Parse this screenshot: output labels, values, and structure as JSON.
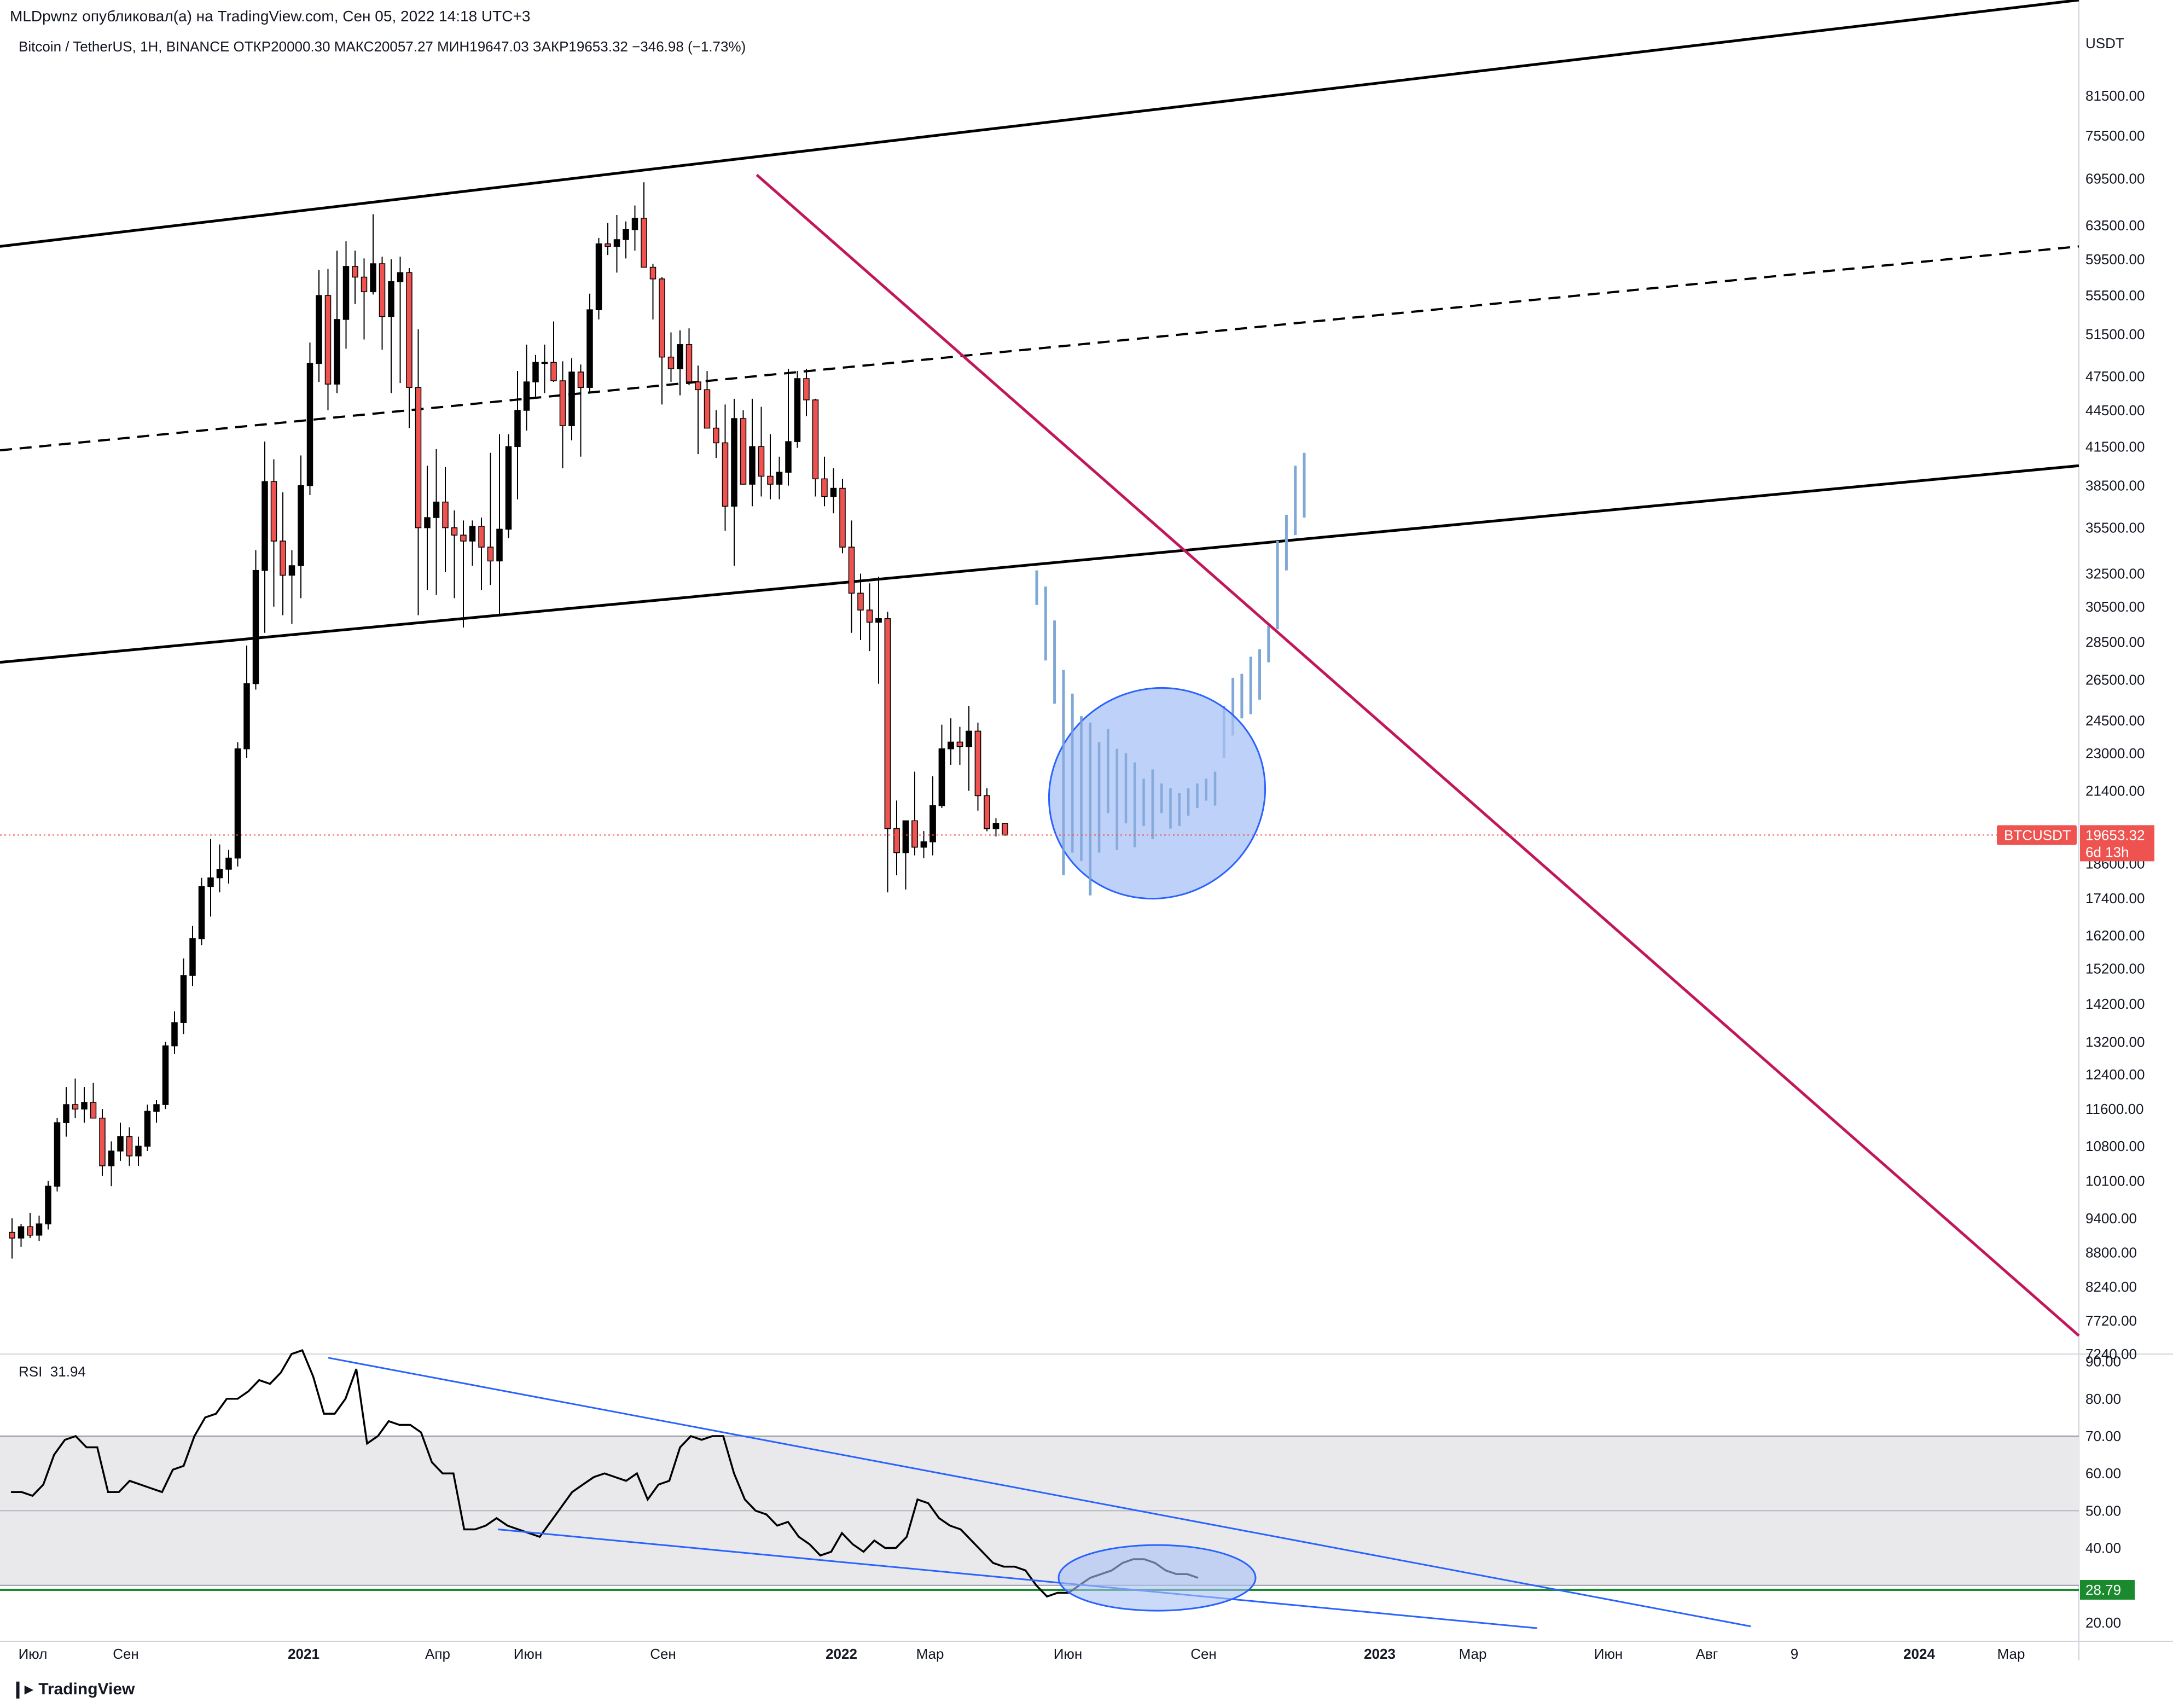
{
  "header": {
    "published": "MLDpwnz опубликовал(а) на TradingView.com, Сен 05, 2022 14:18 UTC+3",
    "symbol_line": "Bitcoin / TetherUS, 1H, BINANCE  ОТКР20000.30  МАКС20057.27  МИН19647.03  ЗАКР19653.32  −346.98 (−1.73%)"
  },
  "footer": {
    "logo": "TradingView"
  },
  "colors": {
    "up": "#000000",
    "down": "#ef5350",
    "trend_red": "#c2185b",
    "channel": "#000000",
    "projection": "#7fa8d6",
    "ellipse_fill": "#a8c2f5",
    "ellipse_stroke": "#2962ff",
    "rsi_trend": "#2962ff",
    "rsi_band": "#e9e9ec",
    "rsi_oversold": "#1b8a2f",
    "price_tag": "#ef5350"
  },
  "chart_data": [
    {
      "type": "candlestick",
      "symbol": "BTCUSDT",
      "price_axis_unit": "USDT",
      "scale": "log",
      "ylim": [
        7240,
        98000
      ],
      "y_ticks": [
        81500,
        75500,
        69500,
        63500,
        59500,
        55500,
        51500,
        47500,
        44500,
        41500,
        38500,
        35500,
        32500,
        30500,
        28500,
        26500,
        24500,
        23000,
        21400,
        18600,
        17400,
        16200,
        15200,
        14200,
        13200,
        12400,
        11600,
        10800,
        10100,
        9400,
        8800,
        8240,
        7720,
        7240
      ],
      "y_tick_labels": [
        "81500.00",
        "75500.00",
        "69500.00",
        "63500.00",
        "59500.00",
        "55500.00",
        "51500.00",
        "47500.00",
        "44500.00",
        "41500.00",
        "38500.00",
        "35500.00",
        "32500.00",
        "30500.00",
        "28500.00",
        "26500.00",
        "24500.00",
        "23000.00",
        "21400.00",
        "18600.00",
        "17400.00",
        "16200.00",
        "15200.00",
        "14200.00",
        "13200.00",
        "12400.00",
        "11600.00",
        "10800.00",
        "10100.00",
        "9400.00",
        "8800.00",
        "8240.00",
        "7720.00",
        "7240.00"
      ],
      "x_tick_labels": [
        "Июл",
        "Сен",
        "2021",
        "Апр",
        "Июн",
        "Сен",
        "2022",
        "Мар",
        "Июн",
        "Сен",
        "2023",
        "Мар",
        "Июн",
        "Авг",
        "9",
        "2024",
        "Мар"
      ],
      "x_tick_bold": [
        false,
        false,
        true,
        false,
        false,
        false,
        true,
        false,
        false,
        false,
        true,
        false,
        false,
        false,
        false,
        true,
        false
      ],
      "last_price": {
        "label": "BTCUSDT",
        "value": "19653.32",
        "countdown": "6d 13h",
        "price": 19653.32
      },
      "candles_ohlc": [
        [
          9150,
          9400,
          8700,
          9050
        ],
        [
          9050,
          9300,
          8900,
          9250
        ],
        [
          9250,
          9500,
          9050,
          9100
        ],
        [
          9100,
          9450,
          9000,
          9300
        ],
        [
          9300,
          10100,
          9200,
          10000
        ],
        [
          10000,
          11400,
          9900,
          11300
        ],
        [
          11300,
          12100,
          11000,
          11700
        ],
        [
          11700,
          12300,
          11400,
          11600
        ],
        [
          11600,
          12100,
          11300,
          11750
        ],
        [
          11750,
          12200,
          11500,
          11400
        ],
        [
          11400,
          11600,
          10200,
          10400
        ],
        [
          10400,
          10900,
          10000,
          10700
        ],
        [
          10700,
          11300,
          10500,
          11000
        ],
        [
          11000,
          11200,
          10400,
          10600
        ],
        [
          10600,
          11000,
          10400,
          10800
        ],
        [
          10800,
          11700,
          10700,
          11550
        ],
        [
          11550,
          11800,
          11300,
          11700
        ],
        [
          11700,
          13200,
          11600,
          13100
        ],
        [
          13100,
          14000,
          12900,
          13700
        ],
        [
          13700,
          15500,
          13400,
          15000
        ],
        [
          15000,
          16500,
          14700,
          16100
        ],
        [
          16100,
          18100,
          15900,
          17800
        ],
        [
          17800,
          19500,
          16800,
          18100
        ],
        [
          18100,
          19300,
          17600,
          18400
        ],
        [
          18400,
          19100,
          17900,
          18800
        ],
        [
          18800,
          23500,
          18500,
          23200
        ],
        [
          23200,
          28300,
          22800,
          26300
        ],
        [
          26300,
          34000,
          26000,
          32700
        ],
        [
          32700,
          41900,
          29000,
          38800
        ],
        [
          38800,
          40500,
          30500,
          34600
        ],
        [
          34600,
          38000,
          30000,
          32400
        ],
        [
          32400,
          34000,
          29500,
          33000
        ],
        [
          33000,
          40800,
          31000,
          38500
        ],
        [
          38500,
          50700,
          37800,
          48700
        ],
        [
          48700,
          58300,
          47000,
          55500
        ],
        [
          55500,
          58400,
          44500,
          46800
        ],
        [
          46800,
          60500,
          46000,
          53000
        ],
        [
          53000,
          61600,
          50100,
          58700
        ],
        [
          58700,
          60500,
          54600,
          57500
        ],
        [
          57500,
          59600,
          51000,
          55900
        ],
        [
          55900,
          64900,
          55600,
          59000
        ],
        [
          59000,
          59800,
          50000,
          53300
        ],
        [
          53300,
          59500,
          46000,
          57000
        ],
        [
          57000,
          59800,
          46900,
          58000
        ],
        [
          58000,
          58500,
          43000,
          46500
        ],
        [
          46500,
          52000,
          30000,
          35500
        ],
        [
          35500,
          40000,
          31500,
          36200
        ],
        [
          36200,
          41300,
          31200,
          37300
        ],
        [
          37300,
          39900,
          32600,
          35500
        ],
        [
          35500,
          36700,
          31000,
          35000
        ],
        [
          35000,
          36000,
          29300,
          34600
        ],
        [
          34600,
          36000,
          33000,
          35600
        ],
        [
          35600,
          36200,
          31500,
          34200
        ],
        [
          34200,
          41000,
          31800,
          33300
        ],
        [
          33300,
          42500,
          30000,
          35400
        ],
        [
          35400,
          42500,
          34800,
          41500
        ],
        [
          41500,
          48000,
          37500,
          44500
        ],
        [
          44500,
          50500,
          42800,
          47000
        ],
        [
          47000,
          49500,
          45500,
          48800
        ],
        [
          48800,
          50500,
          46000,
          48800
        ],
        [
          48800,
          52800,
          47000,
          47100
        ],
        [
          47100,
          48900,
          39800,
          43200
        ],
        [
          43200,
          49200,
          42000,
          47900
        ],
        [
          47900,
          48600,
          40700,
          46500
        ],
        [
          46500,
          55700,
          46000,
          54000
        ],
        [
          54000,
          62000,
          53000,
          61300
        ],
        [
          61300,
          63800,
          60000,
          61000
        ],
        [
          61000,
          64800,
          58000,
          61800
        ],
        [
          61800,
          64000,
          59600,
          63000
        ],
        [
          63000,
          66000,
          60500,
          64400
        ],
        [
          64400,
          69000,
          60000,
          58600
        ],
        [
          58600,
          59000,
          53000,
          57300
        ],
        [
          57300,
          57500,
          45000,
          49300
        ],
        [
          49300,
          51700,
          47000,
          48200
        ],
        [
          48200,
          51900,
          45800,
          50500
        ],
        [
          50500,
          52100,
          46700,
          47000
        ],
        [
          47000,
          48500,
          40900,
          46300
        ],
        [
          46300,
          48000,
          43200,
          43000
        ],
        [
          43000,
          44500,
          40600,
          41800
        ],
        [
          41800,
          45000,
          35300,
          37000
        ],
        [
          37000,
          45500,
          33000,
          43800
        ],
        [
          43800,
          44500,
          40000,
          38600
        ],
        [
          38600,
          45500,
          37000,
          41500
        ],
        [
          41500,
          44800,
          37700,
          39200
        ],
        [
          39200,
          42500,
          37500,
          38600
        ],
        [
          38600,
          40700,
          37500,
          39500
        ],
        [
          39500,
          48200,
          38500,
          41900
        ],
        [
          41900,
          48000,
          41400,
          47300
        ],
        [
          47300,
          48200,
          44000,
          45400
        ],
        [
          45400,
          45500,
          37700,
          39000
        ],
        [
          39000,
          40700,
          37000,
          37700
        ],
        [
          37700,
          39800,
          36500,
          38300
        ],
        [
          38300,
          39000,
          33800,
          34200
        ],
        [
          34200,
          36000,
          29000,
          31300
        ],
        [
          31300,
          32500,
          28600,
          30300
        ],
        [
          30300,
          31900,
          28000,
          29600
        ],
        [
          29600,
          32300,
          26300,
          29800
        ],
        [
          29800,
          30200,
          17600,
          19900
        ],
        [
          19900,
          21000,
          18200,
          19000
        ],
        [
          19000,
          20000,
          17700,
          20200
        ],
        [
          20200,
          22200,
          18900,
          19200
        ],
        [
          19200,
          19800,
          18800,
          19400
        ],
        [
          19400,
          22000,
          18900,
          20800
        ],
        [
          20800,
          24300,
          20700,
          23200
        ],
        [
          23200,
          24600,
          22500,
          23500
        ],
        [
          23500,
          24200,
          22500,
          23300
        ],
        [
          23300,
          25200,
          21400,
          24000
        ],
        [
          24000,
          24400,
          20600,
          21200
        ],
        [
          21200,
          21500,
          19800,
          19900
        ],
        [
          19900,
          20300,
          19600,
          20100
        ],
        [
          20100,
          20100,
          19650,
          19653
        ]
      ],
      "projection_bars": [
        [
          32700,
          30600
        ],
        [
          31700,
          27500
        ],
        [
          29700,
          25300
        ],
        [
          27000,
          18200
        ],
        [
          25800,
          19000
        ],
        [
          24700,
          18700
        ],
        [
          24400,
          17500
        ],
        [
          23500,
          19000
        ],
        [
          24100,
          20500
        ],
        [
          23200,
          19100
        ],
        [
          23000,
          20100
        ],
        [
          22600,
          19200
        ],
        [
          21900,
          20000
        ],
        [
          22300,
          19500
        ],
        [
          21700,
          20500
        ],
        [
          21500,
          19900
        ],
        [
          21300,
          20000
        ],
        [
          21500,
          20400
        ],
        [
          21700,
          20700
        ],
        [
          21900,
          21000
        ],
        [
          22200,
          20800
        ],
        [
          25200,
          22800
        ],
        [
          26600,
          23800
        ],
        [
          26800,
          24600
        ],
        [
          27700,
          24800
        ],
        [
          28100,
          25500
        ],
        [
          29400,
          27400
        ],
        [
          34600,
          29200
        ],
        [
          36400,
          32700
        ],
        [
          40000,
          35000
        ],
        [
          41000,
          36200
        ]
      ],
      "channel_upper_line": [
        [
          0,
          61000
        ],
        [
          1.0,
          98000
        ]
      ],
      "channel_mid_dashed": [
        [
          0,
          41200
        ],
        [
          1.0,
          61000
        ]
      ],
      "channel_lower_line": [
        [
          0,
          27400
        ],
        [
          1.0,
          40000
        ]
      ],
      "descending_trendline": [
        [
          0.364,
          70000
        ],
        [
          1.0,
          7500
        ]
      ]
    },
    {
      "type": "line",
      "indicator": "RSI",
      "label": "RSI",
      "label_value": "31.94",
      "ylim": [
        15,
        92
      ],
      "y_ticks": [
        90,
        80,
        70,
        60,
        50,
        40,
        20
      ],
      "y_tick_labels": [
        "90.00",
        "80.00",
        "70.00",
        "60.00",
        "50.00",
        "40.00",
        "20.00"
      ],
      "band": [
        30,
        70
      ],
      "midline": 50,
      "oversold_line": {
        "value": 28.79,
        "label": "28.79"
      },
      "values": [
        55,
        55,
        54,
        57,
        65,
        69,
        70,
        67,
        67,
        55,
        55,
        58,
        57,
        56,
        55,
        61,
        62,
        70,
        75,
        76,
        80,
        80,
        82,
        85,
        84,
        87,
        92,
        93,
        86,
        76,
        76,
        80,
        88,
        68,
        70,
        74,
        73,
        73,
        71,
        63,
        60,
        60,
        45,
        45,
        46,
        48,
        46,
        45,
        44,
        43,
        47,
        51,
        55,
        57,
        59,
        60,
        59,
        58,
        60,
        53,
        57,
        58,
        67,
        70,
        69,
        70,
        70,
        60,
        53,
        50,
        49,
        46,
        47,
        43,
        41,
        38,
        39,
        44,
        41,
        39,
        42,
        40,
        40,
        43,
        53,
        52,
        48,
        46,
        45,
        42,
        39,
        36,
        35,
        35,
        34,
        30,
        27,
        28,
        28,
        30,
        32,
        33,
        34,
        36,
        37,
        37,
        36,
        34,
        33,
        33,
        32
      ]
    }
  ]
}
